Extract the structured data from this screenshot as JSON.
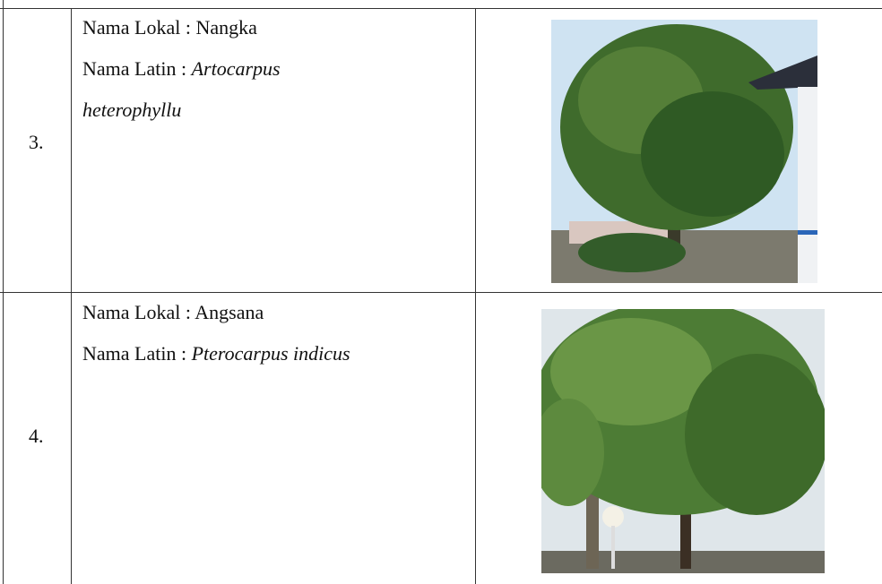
{
  "table": {
    "rows": [
      {
        "number": "3.",
        "local": "Nama Lokal : Nangka",
        "latin_label": "Nama Latin :",
        "latin_name": "Artocarpus heterophyllu"
      },
      {
        "number": "4.",
        "local": "Nama Lokal : Angsana",
        "latin_label": "Nama Latin :",
        "latin_name": "Pterocarpus indicus"
      }
    ]
  }
}
